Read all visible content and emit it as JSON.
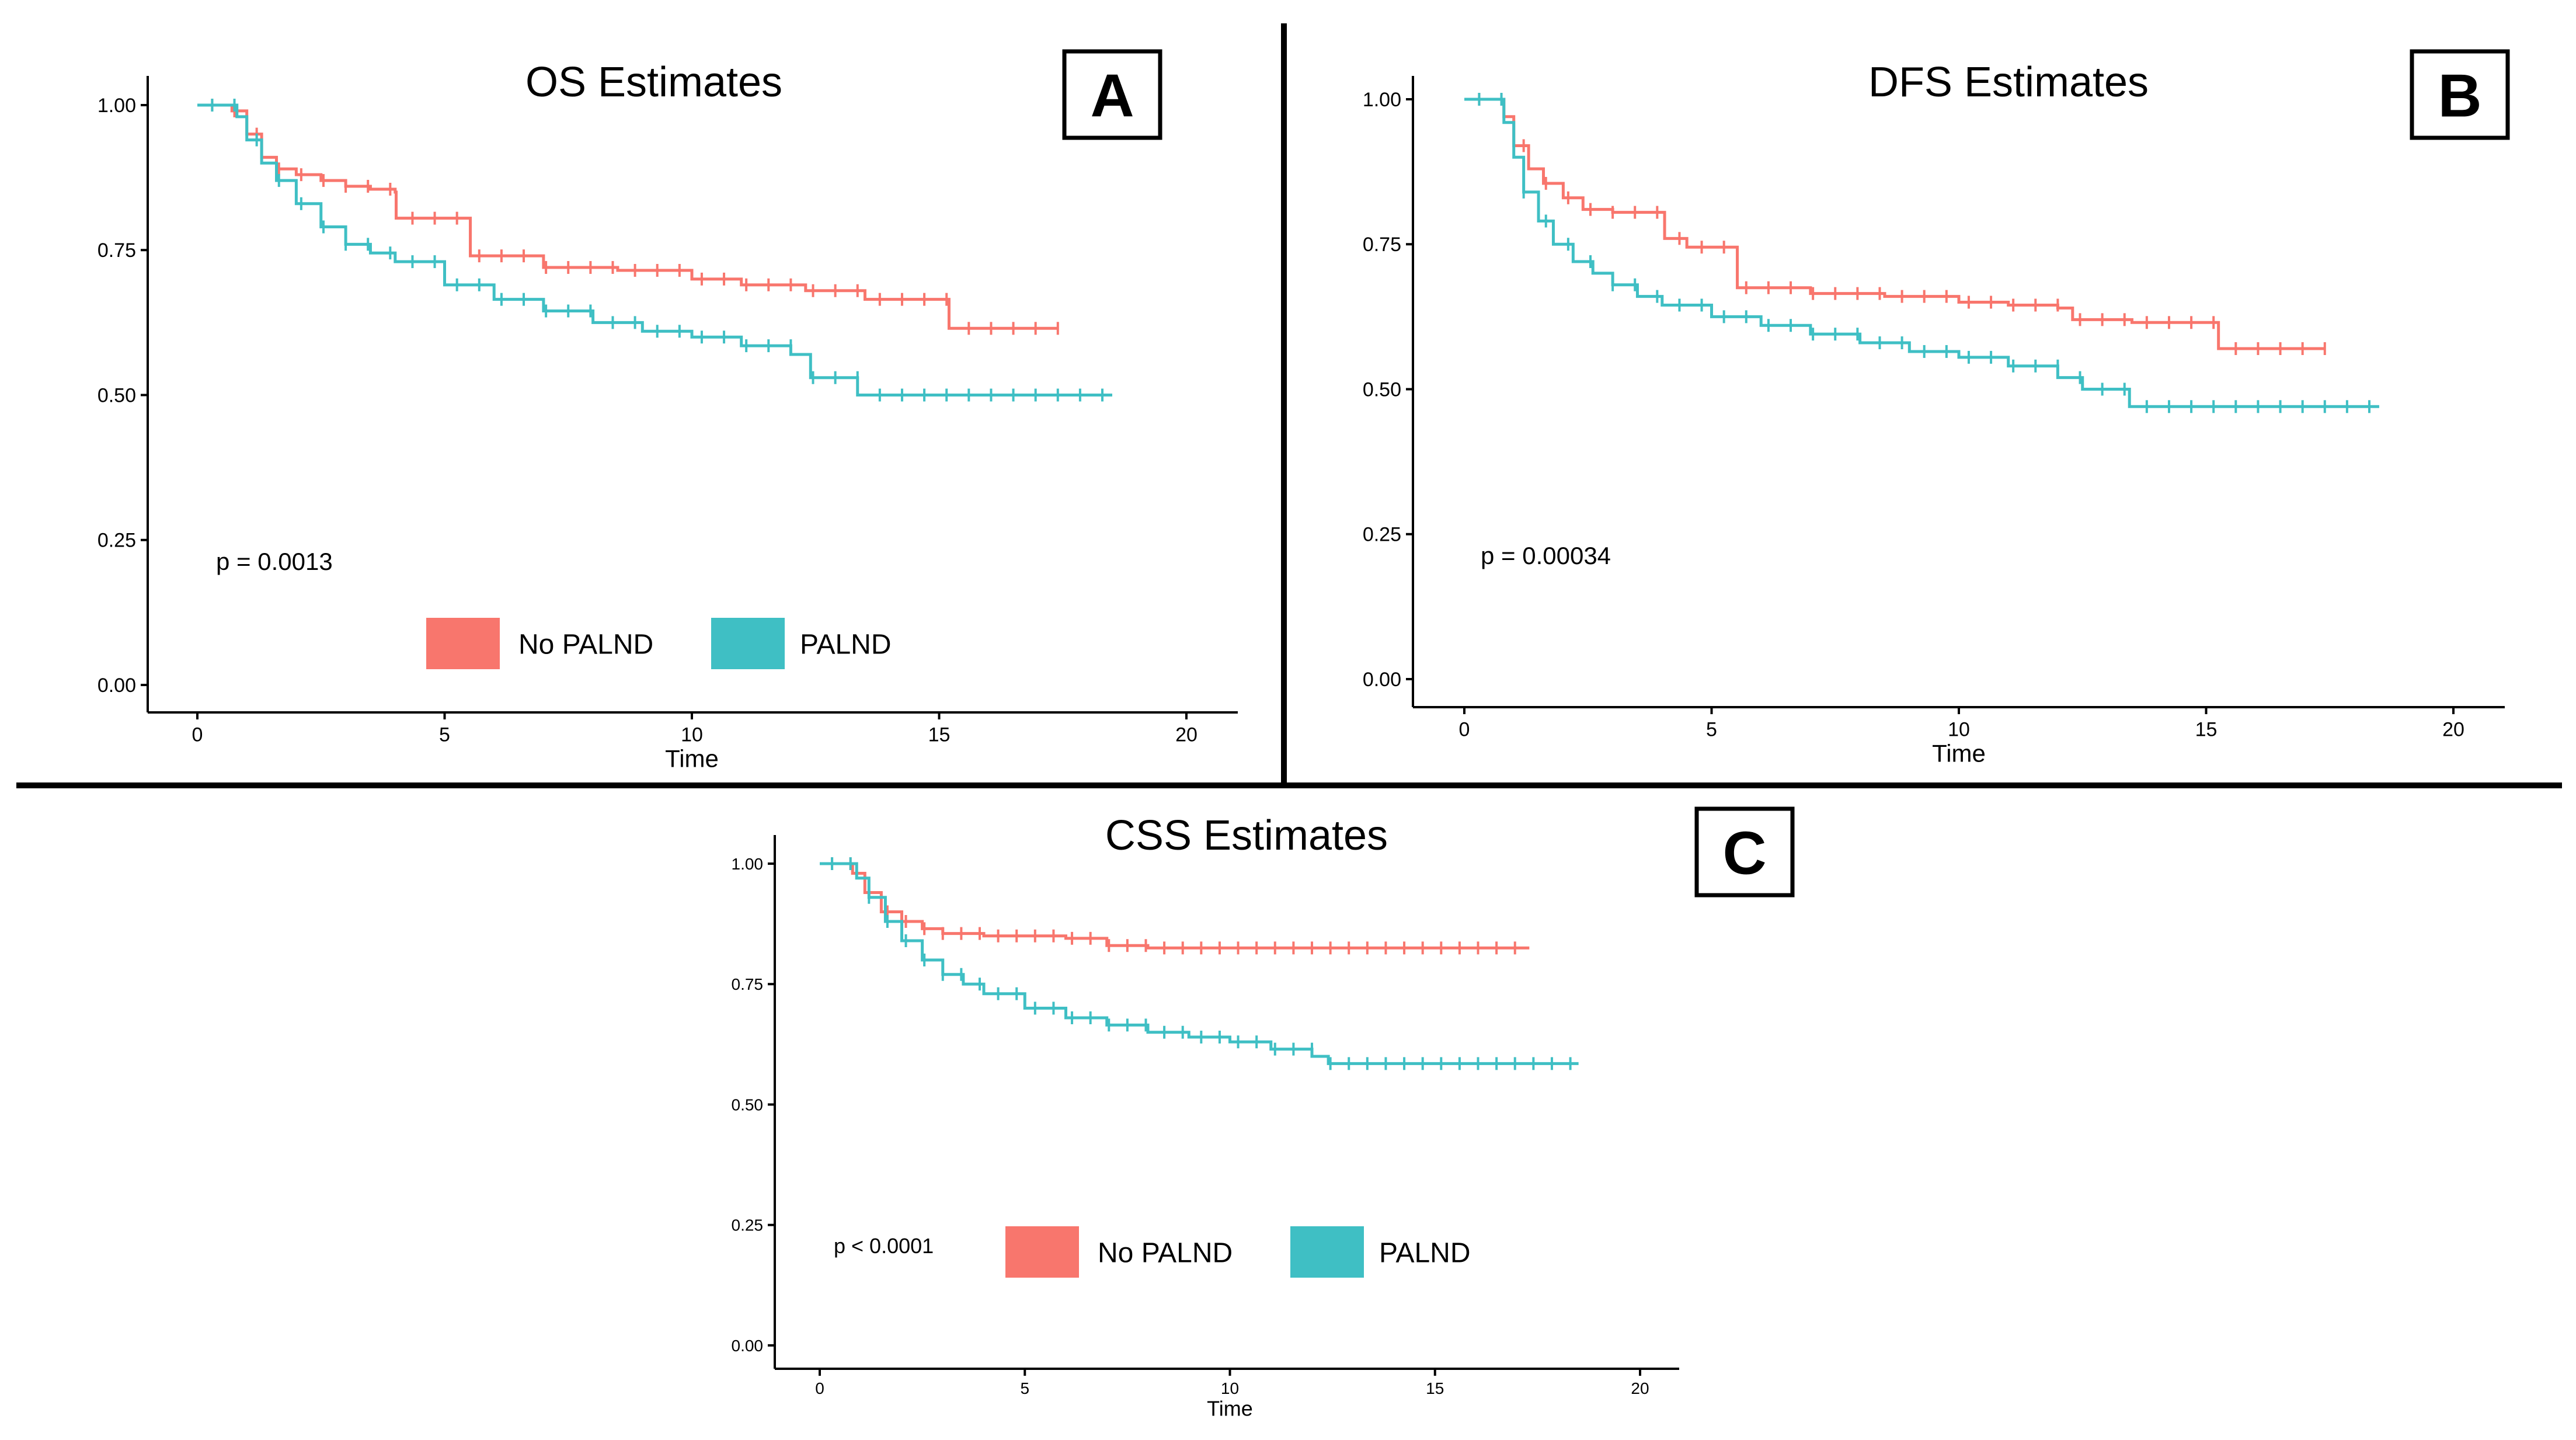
{
  "colors": {
    "no_palnd": "#F8766D",
    "palnd": "#3FBFC4",
    "text": "#000000",
    "axis": "#000000"
  },
  "chart_data": [
    {
      "type": "line",
      "subtype": "kaplan-meier",
      "panel_label": "A",
      "title": "OS Estimates",
      "xlabel": "Time",
      "ylabel": "",
      "xlim": [
        0,
        20
      ],
      "ylim": [
        0,
        1
      ],
      "x_ticks": [
        "0",
        "5",
        "10",
        "15",
        "20"
      ],
      "y_ticks": [
        "0.00",
        "0.25",
        "0.50",
        "0.75",
        "1.00"
      ],
      "p_value": "p = 0.0013",
      "legend": {
        "position": "bottom-center",
        "entries": [
          "No PALND",
          "PALND"
        ]
      },
      "series": [
        {
          "name": "No PALND",
          "color_key": "no_palnd",
          "x": [
            0,
            0.4,
            0.7,
            1.0,
            1.3,
            1.6,
            2.0,
            2.5,
            3.0,
            3.5,
            4.0,
            4.02,
            5.5,
            5.52,
            7.0,
            8.5,
            10.0,
            11.0,
            12.0,
            12.3,
            13.5,
            15.0,
            15.2,
            17.4
          ],
          "y": [
            1.0,
            1.0,
            0.99,
            0.95,
            0.91,
            0.89,
            0.88,
            0.87,
            0.86,
            0.855,
            0.85,
            0.805,
            0.805,
            0.74,
            0.72,
            0.715,
            0.7,
            0.69,
            0.69,
            0.68,
            0.665,
            0.665,
            0.615,
            0.615
          ]
        },
        {
          "name": "PALND",
          "color_key": "palnd",
          "x": [
            0,
            0.6,
            0.8,
            1.0,
            1.3,
            1.6,
            2.0,
            2.5,
            3.0,
            3.5,
            4.0,
            5.0,
            6.0,
            7.0,
            8.0,
            9.0,
            10.0,
            11.0,
            12.0,
            12.4,
            13.3,
            13.35,
            18.5
          ],
          "y": [
            1.0,
            1.0,
            0.98,
            0.94,
            0.9,
            0.87,
            0.83,
            0.79,
            0.76,
            0.745,
            0.73,
            0.69,
            0.665,
            0.645,
            0.625,
            0.61,
            0.6,
            0.585,
            0.57,
            0.53,
            0.53,
            0.5,
            0.5
          ]
        }
      ]
    },
    {
      "type": "line",
      "subtype": "kaplan-meier",
      "panel_label": "B",
      "title": "DFS Estimates",
      "xlabel": "Time",
      "ylabel": "",
      "xlim": [
        0,
        20
      ],
      "ylim": [
        0,
        1
      ],
      "x_ticks": [
        "0",
        "5",
        "10",
        "15",
        "20"
      ],
      "y_ticks": [
        "0.00",
        "0.25",
        "0.50",
        "0.75",
        "1.00"
      ],
      "p_value": "p = 0.00034",
      "legend": {
        "position": "hidden",
        "entries": []
      },
      "series": [
        {
          "name": "No PALND",
          "color_key": "no_palnd",
          "x": [
            0,
            0.5,
            0.8,
            1.0,
            1.3,
            1.6,
            2.0,
            2.4,
            3.0,
            4.0,
            4.05,
            4.5,
            5.5,
            5.52,
            7.0,
            8.5,
            10.0,
            11.0,
            12.0,
            12.3,
            13.5,
            15.2,
            15.25,
            17.4
          ],
          "y": [
            1.0,
            1.0,
            0.97,
            0.92,
            0.88,
            0.855,
            0.83,
            0.81,
            0.805,
            0.805,
            0.76,
            0.745,
            0.745,
            0.675,
            0.665,
            0.66,
            0.65,
            0.645,
            0.64,
            0.62,
            0.615,
            0.615,
            0.57,
            0.57
          ]
        },
        {
          "name": "PALND",
          "color_key": "palnd",
          "x": [
            0,
            0.6,
            0.8,
            1.0,
            1.2,
            1.5,
            1.8,
            2.2,
            2.6,
            3.0,
            3.5,
            4.0,
            5.0,
            6.0,
            7.0,
            8.0,
            9.0,
            10.0,
            11.0,
            12.0,
            12.5,
            13.4,
            13.45,
            18.5
          ],
          "y": [
            1.0,
            1.0,
            0.96,
            0.9,
            0.84,
            0.79,
            0.75,
            0.72,
            0.7,
            0.68,
            0.66,
            0.645,
            0.625,
            0.61,
            0.595,
            0.58,
            0.565,
            0.555,
            0.54,
            0.52,
            0.5,
            0.5,
            0.47,
            0.47
          ]
        }
      ]
    },
    {
      "type": "line",
      "subtype": "kaplan-meier",
      "panel_label": "C",
      "title": "CSS Estimates",
      "xlabel": "Time",
      "ylabel": "",
      "xlim": [
        0,
        20
      ],
      "ylim": [
        0,
        1
      ],
      "x_ticks": [
        "0",
        "5",
        "10",
        "15",
        "20"
      ],
      "y_ticks": [
        "0.00",
        "0.25",
        "0.50",
        "0.75",
        "1.00"
      ],
      "p_value": "p < 0.0001",
      "legend": {
        "position": "bottom-center",
        "entries": [
          "No PALND",
          "PALND"
        ]
      },
      "series": [
        {
          "name": "No PALND",
          "color_key": "no_palnd",
          "x": [
            0,
            0.5,
            0.8,
            1.1,
            1.5,
            2.0,
            2.5,
            3.0,
            4.0,
            5.0,
            6.0,
            7.0,
            8.0,
            17.3
          ],
          "y": [
            1.0,
            1.0,
            0.98,
            0.94,
            0.9,
            0.88,
            0.865,
            0.855,
            0.85,
            0.85,
            0.845,
            0.83,
            0.825,
            0.825
          ]
        },
        {
          "name": "PALND",
          "color_key": "palnd",
          "x": [
            0,
            0.6,
            0.9,
            1.2,
            1.6,
            2.0,
            2.5,
            3.0,
            3.5,
            4.0,
            5.0,
            6.0,
            7.0,
            8.0,
            9.0,
            10.0,
            11.0,
            12.0,
            12.4,
            18.5
          ],
          "y": [
            1.0,
            1.0,
            0.97,
            0.93,
            0.88,
            0.84,
            0.8,
            0.77,
            0.75,
            0.73,
            0.7,
            0.68,
            0.665,
            0.65,
            0.64,
            0.63,
            0.615,
            0.6,
            0.585,
            0.585
          ]
        }
      ]
    }
  ]
}
